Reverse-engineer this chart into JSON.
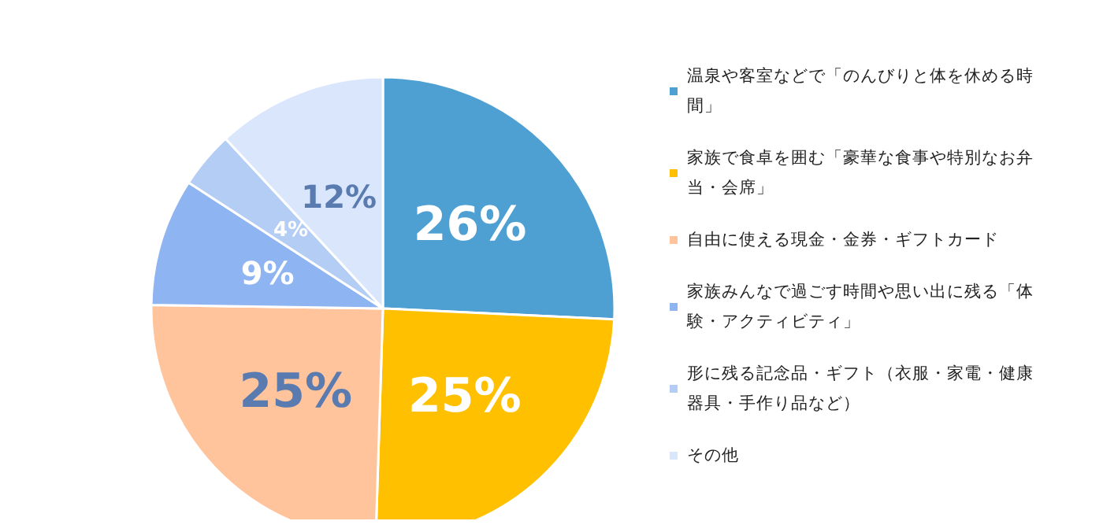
{
  "chart_data": {
    "type": "pie",
    "categories": [
      "温泉や客室などで「のんびりと体を休める時間」",
      "家族で食卓を囲む「豪華な食事や特別なお弁当・会席」",
      "自由に使える現金・金券・ギフトカード",
      "家族みんなで過ごす時間や思い出に残る「体験・アクティビティ」",
      "形に残る記念品・ギフト（衣服・家電・健康器具・手作り品など）",
      "その他"
    ],
    "values": [
      26,
      25,
      25,
      9,
      4,
      12
    ],
    "value_labels": [
      "26%",
      "25%",
      "25%",
      "9%",
      "4%",
      "12%"
    ],
    "colors": [
      "#4fa0d2",
      "#ffc000",
      "#ffc49b",
      "#8fb4f2",
      "#b4cdf5",
      "#d9e6fb"
    ],
    "legend": "right"
  }
}
